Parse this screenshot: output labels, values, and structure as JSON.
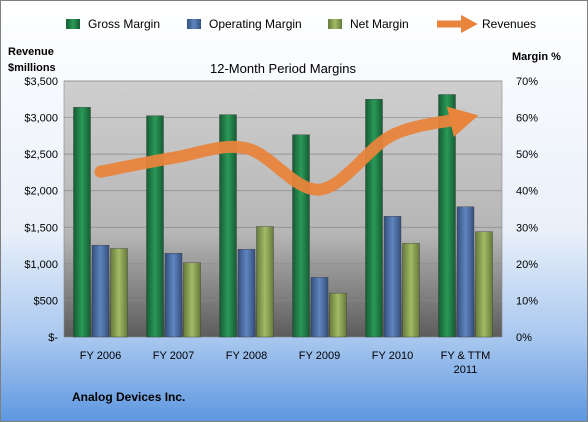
{
  "chart_data": {
    "type": "bar",
    "title": "12-Month Period Margins",
    "company": "Analog Devices Inc.",
    "left_axis_title": [
      "Revenue",
      "$millions"
    ],
    "right_axis_title": "Margin %",
    "categories": [
      [
        "FY 2006"
      ],
      [
        "FY 2007"
      ],
      [
        "FY 2008"
      ],
      [
        "FY 2009"
      ],
      [
        "FY 2010"
      ],
      [
        "FY & TTM",
        "2011"
      ]
    ],
    "left_axis": {
      "min": 0,
      "max": 3500,
      "step": 500,
      "labels": [
        "$-",
        "$500",
        "$1,000",
        "$1,500",
        "$2,000",
        "$2,500",
        "$3,000",
        "$3,500"
      ]
    },
    "right_axis": {
      "min": 0,
      "max": 70,
      "step": 10,
      "labels": [
        "0%",
        "10%",
        "20%",
        "30%",
        "40%",
        "50%",
        "60%",
        "70%"
      ]
    },
    "series": [
      {
        "name": "Gross Margin",
        "axis": "right",
        "kind": "bar",
        "color": "#1e7b45",
        "values": [
          62.8,
          60.5,
          60.8,
          55.3,
          65.0,
          66.3
        ]
      },
      {
        "name": "Operating Margin",
        "axis": "right",
        "kind": "bar",
        "color": "#4a6ea6",
        "values": [
          25.1,
          22.9,
          24.0,
          16.3,
          33.0,
          35.6
        ]
      },
      {
        "name": "Net Margin",
        "axis": "right",
        "kind": "bar",
        "color": "#8aa152",
        "values": [
          24.2,
          20.3,
          30.2,
          12.0,
          25.6,
          28.8
        ]
      },
      {
        "name": "Revenues",
        "axis": "left",
        "kind": "line",
        "color": "#e8843c",
        "values": [
          2260,
          2450,
          2580,
          2015,
          2760,
          2990
        ]
      }
    ],
    "grid": true,
    "legend_position": "top"
  }
}
